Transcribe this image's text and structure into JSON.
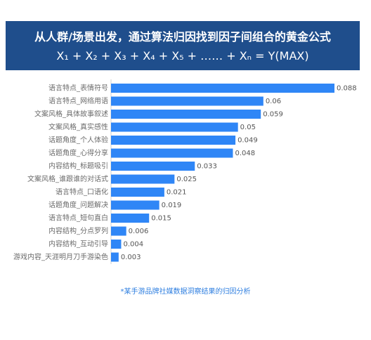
{
  "header": {
    "line1": "从人群/场景出发，通过算法归因找到因子间组合的黄金公式",
    "line2": "X₁ + X₂ + X₃ + X₄ + X₅ + …… + Xₙ = Y(MAX)"
  },
  "chart_data": {
    "type": "bar",
    "orientation": "horizontal",
    "title": "从人群/场景出发，通过算法归因找到因子间组合的黄金公式",
    "categories": [
      "语言特点_表情符号",
      "语言特点_网络用语",
      "文案风格_具体故事叙述",
      "文案风格_真实感性",
      "话题角度_个人体验",
      "话题角度_心得分享",
      "内容结构_标题吸引",
      "文案风格_谁跟谁的对话式",
      "语言特点_口语化",
      "话题角度_问题解决",
      "语言特点_短句直白",
      "内容结构_分点罗列",
      "内容结构_互动引导",
      "游戏内容_天涯明月刀手游染色"
    ],
    "values": [
      0.088,
      0.06,
      0.059,
      0.05,
      0.049,
      0.048,
      0.033,
      0.025,
      0.021,
      0.019,
      0.015,
      0.006,
      0.004,
      0.003
    ],
    "value_labels": [
      "0.088",
      "0.06",
      "0.059",
      "0.05",
      "0.049",
      "0.048",
      "0.033",
      "0.025",
      "0.021",
      "0.019",
      "0.015",
      "0.006",
      "0.004",
      "0.003"
    ],
    "xlim": [
      0,
      0.088
    ],
    "grid": false,
    "bar_color": "#2f86f6"
  },
  "footnote": "*某手游品牌社媒数据洞察结果的归因分析"
}
